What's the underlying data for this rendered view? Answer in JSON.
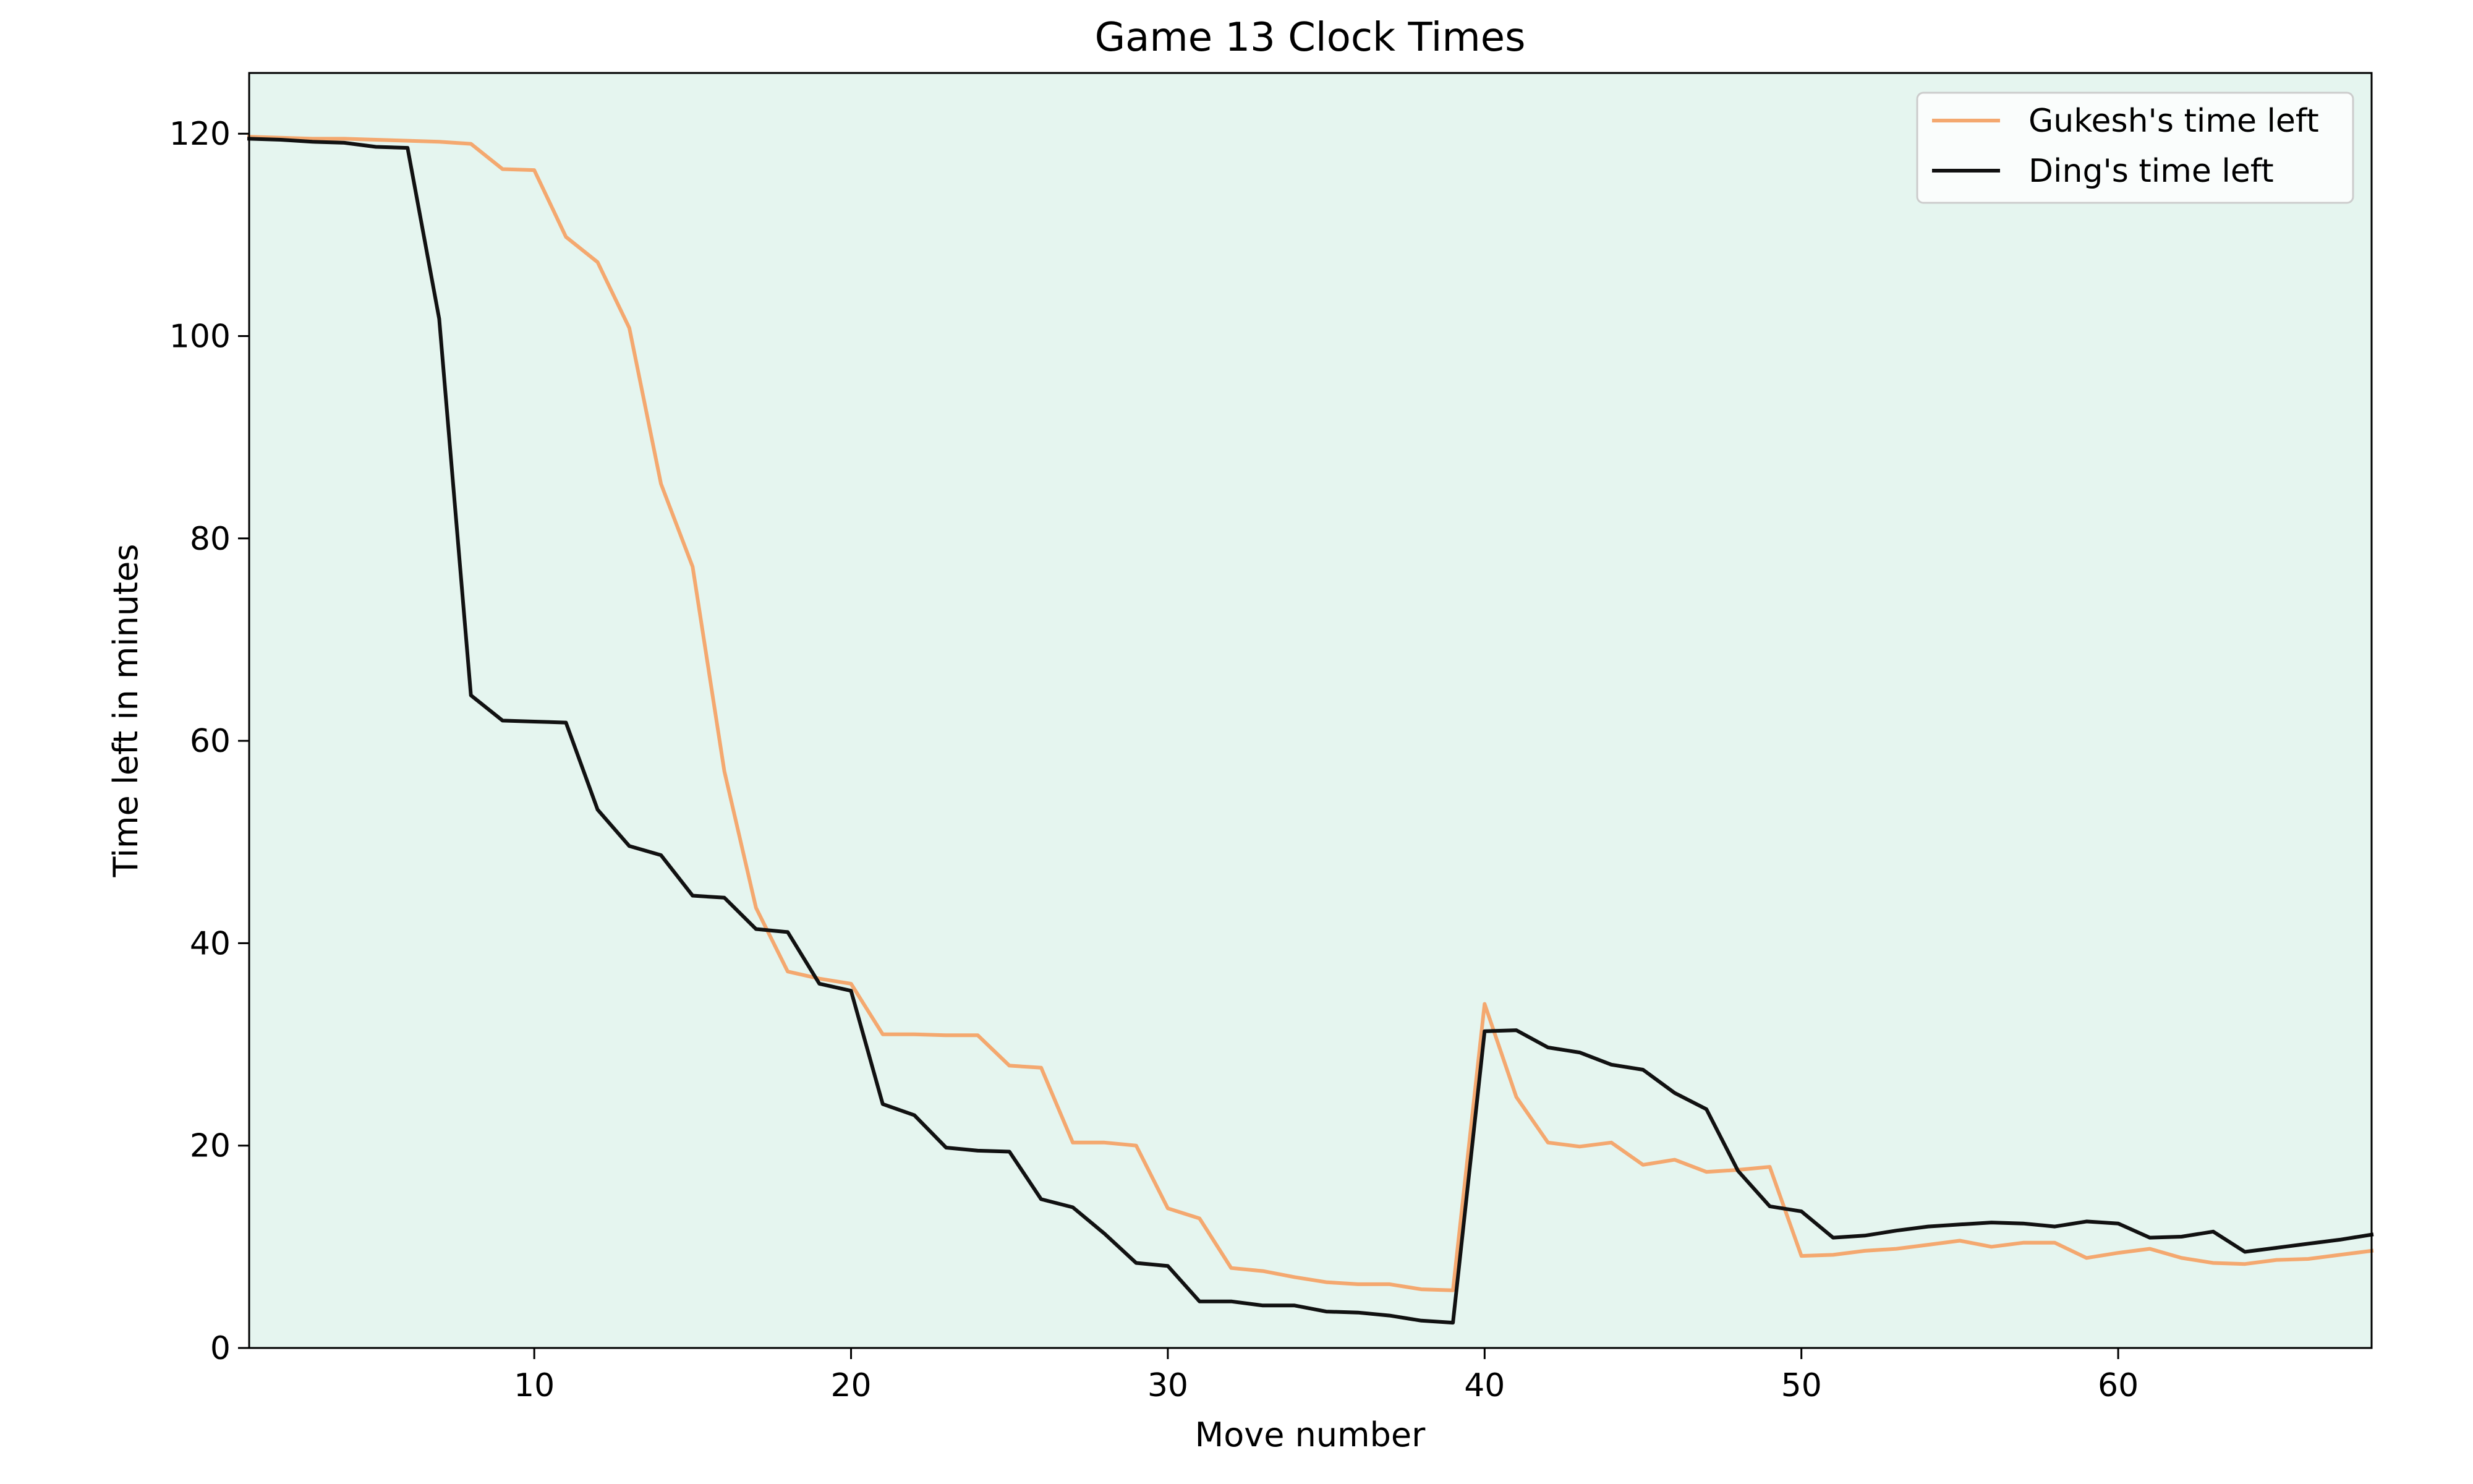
{
  "chart_data": {
    "type": "line",
    "title": "Game 13 Clock Times",
    "xlabel": "Move number",
    "ylabel": "Time left in minutes",
    "xlim": [
      1,
      68
    ],
    "ylim": [
      0,
      126
    ],
    "xticks": [
      10,
      20,
      30,
      40,
      50,
      60
    ],
    "yticks": [
      0,
      20,
      40,
      60,
      80,
      100,
      120
    ],
    "plot_background": "#e5f5ef",
    "legend_position": "upper right",
    "grid": false,
    "x": [
      1,
      2,
      3,
      4,
      5,
      6,
      7,
      8,
      9,
      10,
      11,
      12,
      13,
      14,
      15,
      16,
      17,
      18,
      19,
      20,
      21,
      22,
      23,
      24,
      25,
      26,
      27,
      28,
      29,
      30,
      31,
      32,
      33,
      34,
      35,
      36,
      37,
      38,
      39,
      40,
      41,
      42,
      43,
      44,
      45,
      46,
      47,
      48,
      49,
      50,
      51,
      52,
      53,
      54,
      55,
      56,
      57,
      58,
      59,
      60,
      61,
      62,
      63,
      64,
      65,
      66,
      67,
      68
    ],
    "series": [
      {
        "name": "Gukesh's time left",
        "color": "#f4a86f",
        "values": [
          119.7,
          119.6,
          119.5,
          119.5,
          119.4,
          119.3,
          119.2,
          119.0,
          116.5,
          116.4,
          109.8,
          107.3,
          100.8,
          85.4,
          77.2,
          57.0,
          43.5,
          37.2,
          36.5,
          36.0,
          31.0,
          31.0,
          30.9,
          30.9,
          27.9,
          27.7,
          20.3,
          20.3,
          20.0,
          13.8,
          12.8,
          7.9,
          7.6,
          7.0,
          6.5,
          6.3,
          6.3,
          5.8,
          5.7,
          34.0,
          24.8,
          20.3,
          19.9,
          20.3,
          18.1,
          18.6,
          17.4,
          17.6,
          17.9,
          9.1,
          9.2,
          9.6,
          9.8,
          10.2,
          10.6,
          10.0,
          10.4,
          10.4,
          8.9,
          9.4,
          9.8,
          8.9,
          8.4,
          8.3,
          8.7,
          8.8,
          9.2,
          9.6
        ]
      },
      {
        "name": "Ding's time left",
        "color": "#111111",
        "values": [
          119.5,
          119.4,
          119.2,
          119.1,
          118.7,
          118.6,
          101.7,
          64.5,
          62.0,
          61.9,
          61.8,
          53.2,
          49.6,
          48.7,
          44.7,
          44.5,
          41.4,
          41.1,
          36.0,
          35.3,
          24.1,
          23.0,
          19.8,
          19.5,
          19.4,
          14.7,
          13.9,
          11.3,
          8.4,
          8.1,
          4.6,
          4.6,
          4.2,
          4.2,
          3.6,
          3.5,
          3.2,
          2.7,
          2.5,
          31.3,
          31.4,
          29.7,
          29.2,
          28.0,
          27.5,
          25.2,
          23.6,
          17.5,
          14.0,
          13.5,
          10.9,
          11.1,
          11.6,
          12.0,
          12.2,
          12.4,
          12.3,
          12.0,
          12.5,
          12.3,
          10.9,
          11.0,
          11.5,
          9.5,
          9.9,
          10.3,
          10.7,
          11.2
        ]
      }
    ]
  }
}
